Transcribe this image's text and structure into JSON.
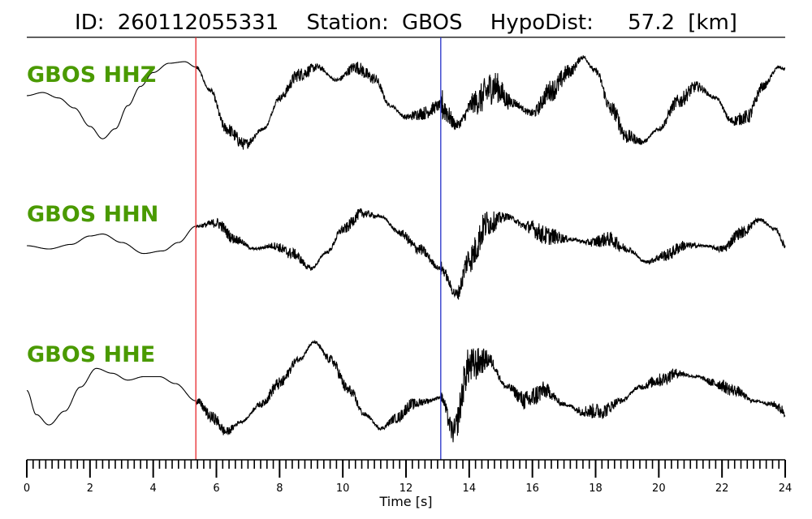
{
  "title": {
    "id_label": "ID:",
    "id_value": "260112055331",
    "station_label": "Station:",
    "station_value": "GBOS",
    "hypodist_label": "HypoDist:",
    "hypodist_value": "57.2",
    "hypodist_unit": "[km]"
  },
  "colors": {
    "trace": "#000000",
    "channel_label": "#4a9a00",
    "p_pick": "#e8262a",
    "s_pick": "#2330c8",
    "axis": "#000000"
  },
  "chart_data": {
    "type": "line",
    "xlabel": "Time [s]",
    "xlim": [
      0,
      24
    ],
    "x_ticks": [
      0,
      2,
      4,
      6,
      8,
      10,
      12,
      14,
      16,
      18,
      20,
      22,
      24
    ],
    "minor_tick_step": 0.2,
    "picks": [
      {
        "phase": "P",
        "time": 5.35
      },
      {
        "phase": "S",
        "time": 13.1
      }
    ],
    "series": [
      {
        "name": "GBOS HHZ",
        "points": [
          [
            0,
            0.18
          ],
          [
            0.5,
            0.22
          ],
          [
            1.0,
            0.15
          ],
          [
            1.5,
            0.02
          ],
          [
            2.0,
            -0.22
          ],
          [
            2.4,
            -0.38
          ],
          [
            2.8,
            -0.25
          ],
          [
            3.2,
            0.05
          ],
          [
            3.6,
            0.3
          ],
          [
            4.0,
            0.48
          ],
          [
            4.5,
            0.6
          ],
          [
            5.0,
            0.62
          ],
          [
            5.35,
            0.55
          ],
          [
            5.8,
            0.25
          ],
          [
            6.3,
            -0.25
          ],
          [
            6.9,
            -0.45
          ],
          [
            7.5,
            -0.25
          ],
          [
            8.0,
            0.15
          ],
          [
            8.6,
            0.45
          ],
          [
            9.2,
            0.55
          ],
          [
            9.8,
            0.38
          ],
          [
            10.4,
            0.55
          ],
          [
            11.0,
            0.4
          ],
          [
            11.5,
            0.05
          ],
          [
            12.0,
            -0.1
          ],
          [
            12.5,
            -0.05
          ],
          [
            13.1,
            0.05
          ],
          [
            13.6,
            -0.2
          ],
          [
            14.2,
            0.1
          ],
          [
            14.8,
            0.3
          ],
          [
            15.3,
            0.1
          ],
          [
            16.0,
            -0.05
          ],
          [
            16.6,
            0.25
          ],
          [
            17.2,
            0.5
          ],
          [
            17.6,
            0.68
          ],
          [
            18.0,
            0.5
          ],
          [
            18.5,
            0.0
          ],
          [
            19.0,
            -0.35
          ],
          [
            19.5,
            -0.42
          ],
          [
            20.0,
            -0.25
          ],
          [
            20.6,
            0.1
          ],
          [
            21.2,
            0.3
          ],
          [
            21.8,
            0.15
          ],
          [
            22.3,
            -0.15
          ],
          [
            22.8,
            -0.1
          ],
          [
            23.3,
            0.3
          ],
          [
            23.8,
            0.55
          ],
          [
            24,
            0.52
          ]
        ]
      },
      {
        "name": "GBOS HHN",
        "points": [
          [
            0,
            0.0
          ],
          [
            0.7,
            -0.05
          ],
          [
            1.4,
            0.02
          ],
          [
            2.0,
            0.15
          ],
          [
            2.4,
            0.18
          ],
          [
            3.0,
            0.05
          ],
          [
            3.7,
            -0.12
          ],
          [
            4.3,
            -0.08
          ],
          [
            4.8,
            0.05
          ],
          [
            5.35,
            0.3
          ],
          [
            6.0,
            0.35
          ],
          [
            6.6,
            0.1
          ],
          [
            7.2,
            -0.05
          ],
          [
            7.8,
            0.0
          ],
          [
            8.4,
            -0.12
          ],
          [
            9.0,
            -0.35
          ],
          [
            9.5,
            -0.1
          ],
          [
            10.0,
            0.25
          ],
          [
            10.6,
            0.5
          ],
          [
            11.2,
            0.45
          ],
          [
            11.8,
            0.2
          ],
          [
            12.4,
            -0.05
          ],
          [
            13.1,
            -0.35
          ],
          [
            13.6,
            -0.75
          ],
          [
            14.0,
            -0.2
          ],
          [
            14.6,
            0.35
          ],
          [
            15.2,
            0.45
          ],
          [
            15.8,
            0.3
          ],
          [
            16.5,
            0.15
          ],
          [
            17.2,
            0.1
          ],
          [
            17.8,
            0.05
          ],
          [
            18.4,
            0.1
          ],
          [
            19.0,
            -0.05
          ],
          [
            19.6,
            -0.25
          ],
          [
            20.2,
            -0.15
          ],
          [
            20.8,
            0.0
          ],
          [
            21.4,
            0.0
          ],
          [
            22.0,
            -0.05
          ],
          [
            22.6,
            0.2
          ],
          [
            23.2,
            0.4
          ],
          [
            23.7,
            0.25
          ],
          [
            24,
            0.0
          ]
        ]
      },
      {
        "name": "GBOS HHE",
        "points": [
          [
            0,
            0.1
          ],
          [
            0.3,
            -0.25
          ],
          [
            0.7,
            -0.4
          ],
          [
            1.2,
            -0.2
          ],
          [
            1.7,
            0.15
          ],
          [
            2.2,
            0.42
          ],
          [
            2.7,
            0.35
          ],
          [
            3.2,
            0.25
          ],
          [
            3.7,
            0.3
          ],
          [
            4.2,
            0.3
          ],
          [
            4.7,
            0.2
          ],
          [
            5.35,
            -0.05
          ],
          [
            5.9,
            -0.3
          ],
          [
            6.3,
            -0.5
          ],
          [
            6.8,
            -0.35
          ],
          [
            7.4,
            -0.1
          ],
          [
            8.0,
            0.2
          ],
          [
            8.6,
            0.55
          ],
          [
            9.1,
            0.8
          ],
          [
            9.6,
            0.55
          ],
          [
            10.2,
            0.1
          ],
          [
            10.7,
            -0.25
          ],
          [
            11.2,
            -0.45
          ],
          [
            11.7,
            -0.3
          ],
          [
            12.2,
            -0.1
          ],
          [
            12.7,
            -0.05
          ],
          [
            13.1,
            0.0
          ],
          [
            13.5,
            -0.5
          ],
          [
            14.0,
            0.45
          ],
          [
            14.6,
            0.55
          ],
          [
            15.2,
            0.15
          ],
          [
            15.8,
            -0.05
          ],
          [
            16.4,
            0.1
          ],
          [
            17.0,
            -0.1
          ],
          [
            17.6,
            -0.2
          ],
          [
            18.2,
            -0.2
          ],
          [
            18.8,
            -0.05
          ],
          [
            19.4,
            0.15
          ],
          [
            20.0,
            0.25
          ],
          [
            20.6,
            0.35
          ],
          [
            21.2,
            0.3
          ],
          [
            21.8,
            0.2
          ],
          [
            22.4,
            0.1
          ],
          [
            23.0,
            -0.05
          ],
          [
            23.6,
            -0.1
          ],
          [
            24,
            -0.2
          ]
        ]
      }
    ]
  }
}
